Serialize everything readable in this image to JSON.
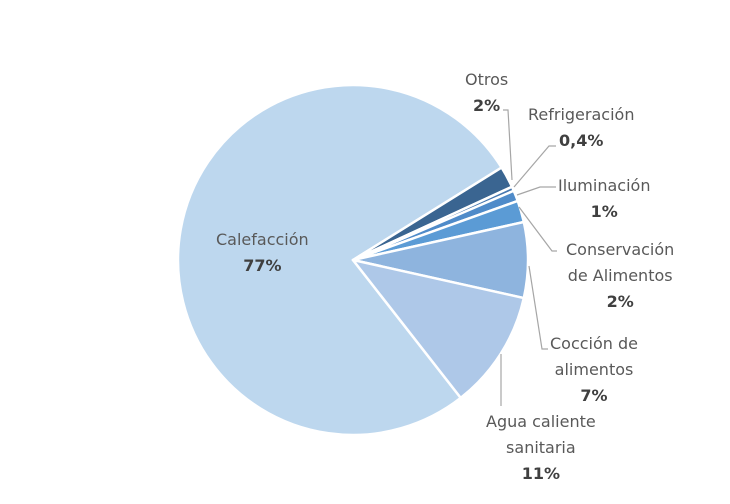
{
  "chart_data": {
    "type": "pie",
    "title": "",
    "start_angle_deg": 52,
    "center": [
      353,
      260
    ],
    "radius": 175,
    "slices": [
      {
        "label": "Calefacción",
        "value": 77,
        "display": "77%",
        "color": "#bdd7ee"
      },
      {
        "label": "Otros",
        "value": 2,
        "display": "2%",
        "color": "#3a6591"
      },
      {
        "label": "Refrigeración",
        "value": 0.4,
        "display": "0,4%",
        "color": "#4677b0"
      },
      {
        "label": "Iluminación",
        "value": 1,
        "display": "1%",
        "color": "#4f8bc9"
      },
      {
        "label": "Conservación de Alimentos",
        "value": 2,
        "display": "2%",
        "color": "#5b9bd5"
      },
      {
        "label": "Cocción de alimentos",
        "value": 7,
        "display": "7%",
        "color": "#8eb4de"
      },
      {
        "label": "Agua caliente sanitaria",
        "value": 11,
        "display": "11%",
        "color": "#aec8e8"
      }
    ]
  },
  "labels": {
    "calefaccion": {
      "name": "Calefacción",
      "pct": "77%"
    },
    "otros": {
      "name": "Otros",
      "pct": "2%"
    },
    "refrigeracion": {
      "name": "Refrigeración",
      "pct": "0,4%"
    },
    "iluminacion": {
      "name": "Iluminación",
      "pct": "1%"
    },
    "conservacion": {
      "name1": "Conservación",
      "name2": "de Alimentos",
      "pct": "2%"
    },
    "coccion": {
      "name1": "Cocción de",
      "name2": "alimentos",
      "pct": "7%"
    },
    "agua": {
      "name1": "Agua caliente",
      "name2": "sanitaria",
      "pct": "11%"
    }
  }
}
